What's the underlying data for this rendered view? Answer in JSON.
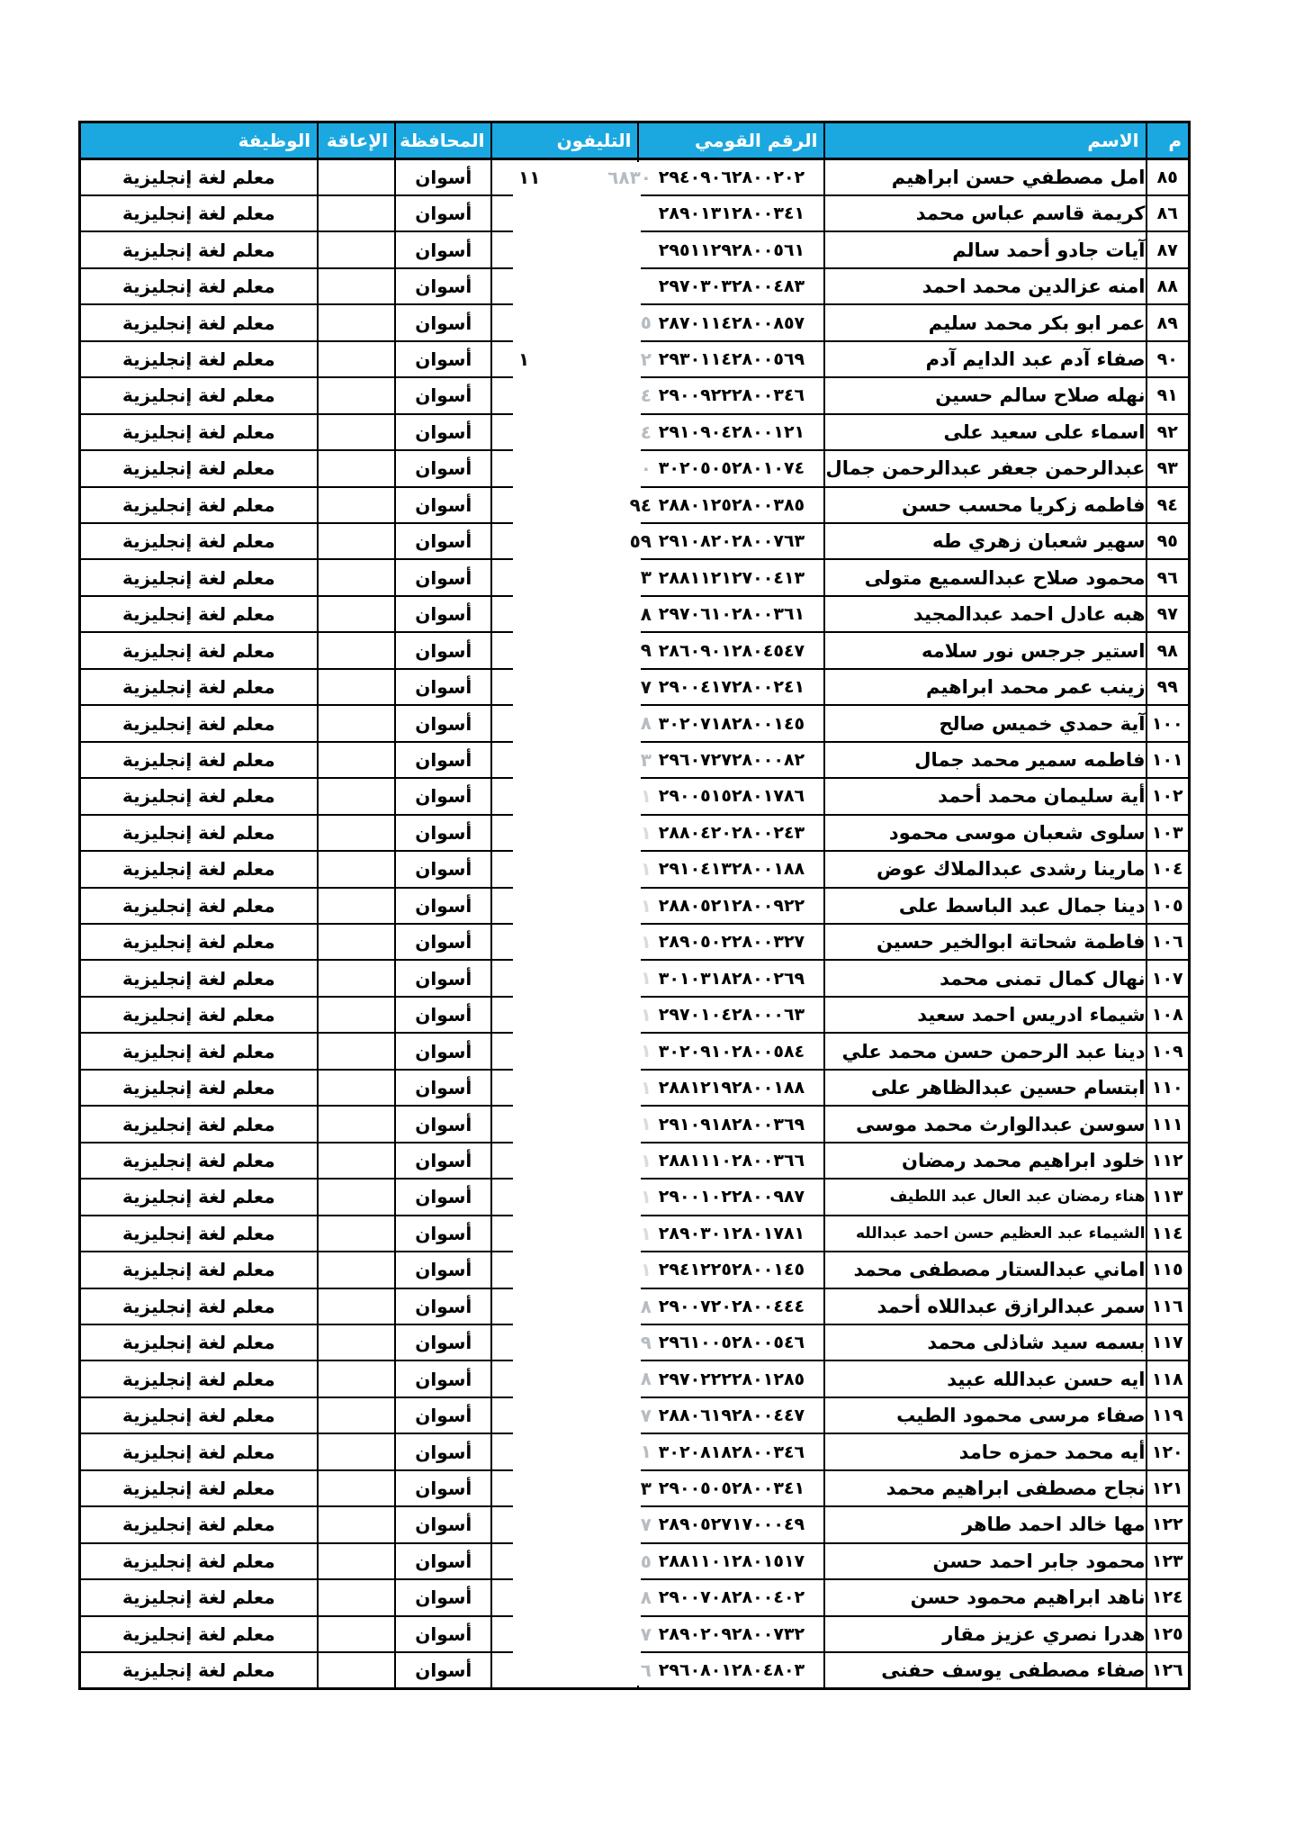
{
  "document": {
    "type": "scanned-roster-table",
    "language": "ar"
  },
  "colors": {
    "header_bg": "#1ba8e0",
    "header_text": "#ffffff",
    "border": "#000000",
    "text": "#000000",
    "frag_dark": "#111111",
    "frag_pale": "#b6bcc1",
    "frag_ghost": "#d9dcde"
  },
  "header": {
    "col_num": "م",
    "col_name": "الاسم",
    "col_nid": "الرقم القومي",
    "col_phone": "التليفون",
    "col_gov": "المحافظة",
    "col_dis": "الإعاقة",
    "col_job": "الوظيفة"
  },
  "defaults": {
    "governorate": "أسوان",
    "disability": "",
    "job": "معلم لغة إنجليزية"
  },
  "rows": [
    {
      "num": "٨٥",
      "name": "امل مصطفي حسن ابراهيم",
      "nid": "٢٩٤٠٩٠٦٢٨٠٠٢٠٢",
      "frag_left": "١١",
      "frag_right": "٦٨٣٠",
      "tone": "pale"
    },
    {
      "num": "٨٦",
      "name": "كريمة قاسم عباس محمد",
      "nid": "٢٨٩٠١٣١٢٨٠٠٣٤١",
      "frag_left": "",
      "frag_right": "",
      "tone": "pale"
    },
    {
      "num": "٨٧",
      "name": "آيات جادو أحمد سالم",
      "nid": "٢٩٥١١٢٩٢٨٠٠٥٦١",
      "frag_left": "",
      "frag_right": "",
      "tone": "pale"
    },
    {
      "num": "٨٨",
      "name": "امنه عزالدين محمد احمد",
      "nid": "٢٩٧٠٣٠٣٢٨٠٠٤٨٣",
      "frag_left": "",
      "frag_right": "",
      "tone": "pale"
    },
    {
      "num": "٨٩",
      "name": "عمر ابو بكر محمد سليم",
      "nid": "٢٨٧٠١١٤٢٨٠٠٨٥٧",
      "frag_left": "",
      "frag_right": "٥",
      "tone": "pale"
    },
    {
      "num": "٩٠",
      "name": "صفاء آدم عبد الدايم آدم",
      "nid": "٢٩٣٠١١٤٢٨٠٠٥٦٩",
      "frag_left": "١",
      "frag_right": "٢",
      "tone": "pale"
    },
    {
      "num": "٩١",
      "name": "نهله صلاح سالم حسين",
      "nid": "٢٩٠٠٩٢٢٢٨٠٠٣٤٦",
      "frag_left": "",
      "frag_right": "٤",
      "tone": "pale"
    },
    {
      "num": "٩٢",
      "name": "اسماء على سعيد على",
      "nid": "٢٩١٠٩٠٤٢٨٠٠١٢١",
      "frag_left": "",
      "frag_right": "٤",
      "tone": "pale"
    },
    {
      "num": "٩٣",
      "name": "عبدالرحمن جعفر عبدالرحمن جمال",
      "nid": "٣٠٢٠٥٠٥٢٨٠١٠٧٤",
      "frag_left": "",
      "frag_right": "٠",
      "tone": "pale"
    },
    {
      "num": "٩٤",
      "name": "فاطمه زكريا محسب حسن",
      "nid": "٢٨٨٠١٢٥٢٨٠٠٣٨٥",
      "frag_left": "",
      "frag_right": "٩٤",
      "tone": "dark"
    },
    {
      "num": "٩٥",
      "name": "سهير شعبان زهري طه",
      "nid": "٢٩١٠٨٢٠٢٨٠٠٧٦٣",
      "frag_left": "",
      "frag_right": "٥٩",
      "tone": "dark"
    },
    {
      "num": "٩٦",
      "name": "محمود صلاح عبدالسميع متولى",
      "nid": "٢٨٨١١٢١٢٧٠٠٤١٣",
      "frag_left": "",
      "frag_right": "٣",
      "tone": "dark"
    },
    {
      "num": "٩٧",
      "name": "هبه عادل احمد عبدالمجيد",
      "nid": "٢٩٧٠٦١٠٢٨٠٠٣٦١",
      "frag_left": "",
      "frag_right": "٨",
      "tone": "dark"
    },
    {
      "num": "٩٨",
      "name": "استير جرجس نور سلامه",
      "nid": "٢٨٦٠٩٠١٢٨٠٤٥٤٧",
      "frag_left": "",
      "frag_right": "٩",
      "tone": "dark"
    },
    {
      "num": "٩٩",
      "name": "زينب عمر محمد ابراهيم",
      "nid": "٢٩٠٠٤١٧٢٨٠٠٢٤١",
      "frag_left": "",
      "frag_right": "٧",
      "tone": "dark"
    },
    {
      "num": "١٠٠",
      "name": "آية حمدي خميس صالح",
      "nid": "٣٠٢٠٧١٨٢٨٠٠١٤٥",
      "frag_left": "",
      "frag_right": "٨",
      "tone": "pale"
    },
    {
      "num": "١٠١",
      "name": "فاطمه سمير محمد جمال",
      "nid": "٢٩٦٠٧٢٧٢٨٠٠٠٨٢",
      "frag_left": "",
      "frag_right": "٣",
      "tone": "pale"
    },
    {
      "num": "١٠٢",
      "name": "أية سليمان محمد أحمد",
      "nid": "٢٩٠٠٥١٥٢٨٠١٧٨٦",
      "frag_left": "",
      "frag_right": "١",
      "tone": "ghost"
    },
    {
      "num": "١٠٣",
      "name": "سلوى شعبان موسى محمود",
      "nid": "٢٨٨٠٤٢٠٢٨٠٠٢٤٣",
      "frag_left": "",
      "frag_right": "١",
      "tone": "ghost"
    },
    {
      "num": "١٠٤",
      "name": "مارينا رشدى عبدالملاك عوض",
      "nid": "٢٩١٠٤١٣٢٨٠٠١٨٨",
      "frag_left": "",
      "frag_right": "١",
      "tone": "ghost"
    },
    {
      "num": "١٠٥",
      "name": "دينا جمال عبد الباسط على",
      "nid": "٢٨٨٠٥٢١٢٨٠٠٩٢٢",
      "frag_left": "",
      "frag_right": "١",
      "tone": "ghost"
    },
    {
      "num": "١٠٦",
      "name": "فاطمة شحاتة ابوالخير حسين",
      "nid": "٢٨٩٠٥٠٢٢٨٠٠٣٢٧",
      "frag_left": "",
      "frag_right": "١",
      "tone": "ghost"
    },
    {
      "num": "١٠٧",
      "name": "نهال كمال تمنى محمد",
      "nid": "٣٠١٠٣١٨٢٨٠٠٢٦٩",
      "frag_left": "",
      "frag_right": "١",
      "tone": "ghost"
    },
    {
      "num": "١٠٨",
      "name": "شيماء ادريس احمد سعيد",
      "nid": "٢٩٧٠١٠٤٢٨٠٠٠٦٣",
      "frag_left": "",
      "frag_right": "١",
      "tone": "ghost"
    },
    {
      "num": "١٠٩",
      "name": "دينا عبد الرحمن حسن محمد علي",
      "nid": "٣٠٢٠٩١٠٢٨٠٠٥٨٤",
      "frag_left": "",
      "frag_right": "١",
      "tone": "ghost"
    },
    {
      "num": "١١٠",
      "name": "ابتسام حسين عبدالظاهر على",
      "nid": "٢٨٨١٢١٩٢٨٠٠١٨٨",
      "frag_left": "",
      "frag_right": "١",
      "tone": "ghost"
    },
    {
      "num": "١١١",
      "name": "سوسن عبدالوارث محمد موسى",
      "nid": "٢٩١٠٩١٨٢٨٠٠٣٦٩",
      "frag_left": "",
      "frag_right": "١",
      "tone": "ghost"
    },
    {
      "num": "١١٢",
      "name": "خلود ابراهيم محمد رمضان",
      "nid": "٢٨٨١١١٠٢٨٠٠٣٦٦",
      "frag_left": "",
      "frag_right": "١",
      "tone": "ghost"
    },
    {
      "num": "١١٣",
      "name": "هناء رمضان عبد العال عبد اللطيف",
      "nid": "٢٩٠٠١٠٢٢٨٠٠٩٨٧",
      "frag_left": "",
      "frag_right": "١",
      "tone": "ghost"
    },
    {
      "num": "١١٤",
      "name": "الشيماء عبد العظيم حسن احمد عبدالله",
      "nid": "٢٨٩٠٣٠١٢٨٠١٧٨١",
      "frag_left": "",
      "frag_right": "١",
      "tone": "ghost"
    },
    {
      "num": "١١٥",
      "name": "اماني عبدالستار مصطفى محمد",
      "nid": "٢٩٤١٢٢٥٢٨٠٠١٤٥",
      "frag_left": "",
      "frag_right": "١",
      "tone": "ghost"
    },
    {
      "num": "١١٦",
      "name": "سمر عبدالرازق عبداللاه أحمد",
      "nid": "٢٩٠٠٧٢٠٢٨٠٠٤٤٤",
      "frag_left": "",
      "frag_right": "٨",
      "tone": "pale"
    },
    {
      "num": "١١٧",
      "name": "بسمه سيد شاذلى محمد",
      "nid": "٢٩٦١٠٠٥٢٨٠٠٥٤٦",
      "frag_left": "",
      "frag_right": "٩",
      "tone": "pale"
    },
    {
      "num": "١١٨",
      "name": "ايه حسن عبدالله عبيد",
      "nid": "٢٩٧٠٢٢٢٢٨٠١٢٨٥",
      "frag_left": "",
      "frag_right": "٨",
      "tone": "pale"
    },
    {
      "num": "١١٩",
      "name": "صفاء مرسى محمود الطيب",
      "nid": "٢٨٨٠٦١٩٢٨٠٠٤٤٧",
      "frag_left": "",
      "frag_right": "٧",
      "tone": "pale"
    },
    {
      "num": "١٢٠",
      "name": "أيه محمد حمزه حامد",
      "nid": "٣٠٢٠٨١٨٢٨٠٠٣٤٦",
      "frag_left": "",
      "frag_right": "١",
      "tone": "pale"
    },
    {
      "num": "١٢١",
      "name": "نجاح مصطفى ابراهيم محمد",
      "nid": "٢٩٠٠٥٠٥٢٨٠٠٣٤١",
      "frag_left": "",
      "frag_right": "٣",
      "tone": "dark"
    },
    {
      "num": "١٢٢",
      "name": "مها خالد احمد طاهر",
      "nid": "٢٨٩٠٥٢٧١٧٠٠٠٤٩",
      "frag_left": "",
      "frag_right": "٧",
      "tone": "pale"
    },
    {
      "num": "١٢٣",
      "name": "محمود جابر احمد حسن",
      "nid": "٢٨٨١١٠١٢٨٠١٥١٧",
      "frag_left": "",
      "frag_right": "٥",
      "tone": "pale"
    },
    {
      "num": "١٢٤",
      "name": "ناهد ابراهيم محمود حسن",
      "nid": "٢٩٠٠٧٠٨٢٨٠٠٤٠٢",
      "frag_left": "",
      "frag_right": "٨",
      "tone": "pale"
    },
    {
      "num": "١٢٥",
      "name": "هدرا نصري عزيز مقار",
      "nid": "٢٨٩٠٢٠٩٢٨٠٠٧٣٢",
      "frag_left": "",
      "frag_right": "٧",
      "tone": "pale"
    },
    {
      "num": "١٢٦",
      "name": "صفاء مصطفى يوسف حفنى",
      "nid": "٢٩٦٠٨٠١٢٨٠٤٨٠٣",
      "frag_left": "",
      "frag_right": "٦",
      "tone": "pale"
    }
  ]
}
